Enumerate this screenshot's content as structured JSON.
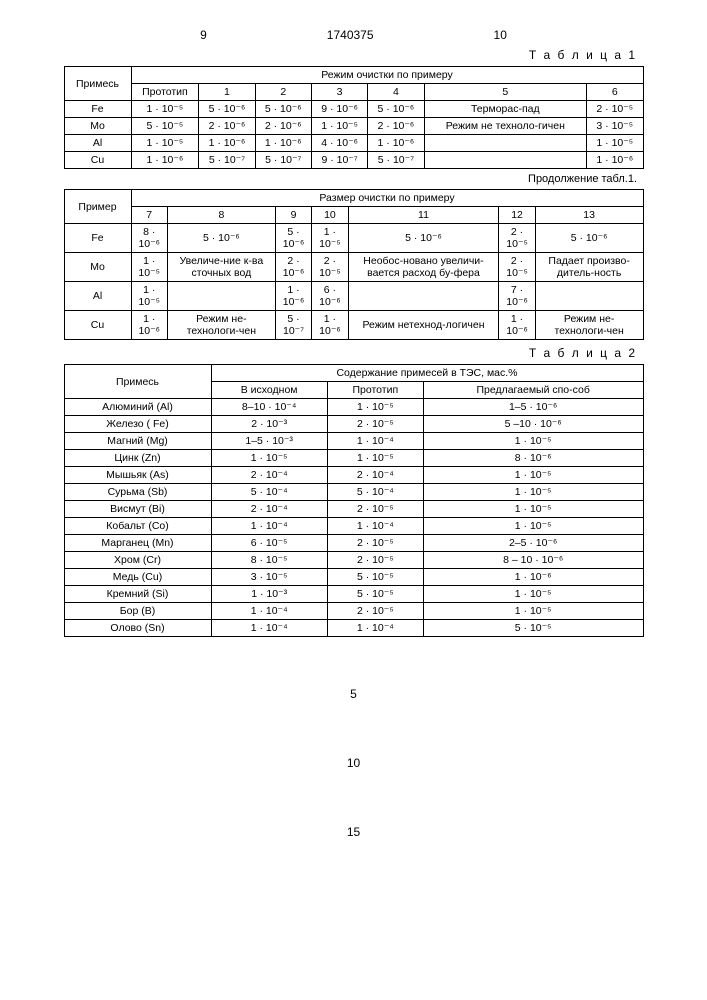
{
  "header": {
    "left_col": "9",
    "doc_number": "1740375",
    "right_col": "10"
  },
  "table1_label": "Т а б л и ц а 1",
  "continuation_label": "Продолжение табл.1.",
  "table2_label": "Т а б л и ц а 2",
  "t1a": {
    "row_header": "Примесь",
    "group_header": "Режим очистки по примеру",
    "cols": [
      "Прототип",
      "1",
      "2",
      "3",
      "4",
      "5",
      "6"
    ],
    "rows": [
      {
        "label": "Fe",
        "cells": [
          "1 · 10⁻⁵",
          "5 · 10⁻⁶",
          "5 · 10⁻⁶",
          "9 · 10⁻⁶",
          "5 · 10⁻⁶",
          "Терморас-пад",
          "2 · 10⁻⁵"
        ]
      },
      {
        "label": "Mo",
        "cells": [
          "5 · 10⁻⁵",
          "2 · 10⁻⁶",
          "2 · 10⁻⁶",
          "1 · 10⁻⁵",
          "2 · 10⁻⁶",
          "Режим не техноло-гичен",
          "3 · 10⁻⁵"
        ]
      },
      {
        "label": "Al",
        "cells": [
          "1 · 10⁻⁵",
          "1 · 10⁻⁶",
          "1 · 10⁻⁶",
          "4 · 10⁻⁶",
          "1 · 10⁻⁶",
          "",
          "1 · 10⁻⁵"
        ]
      },
      {
        "label": "Cu",
        "cells": [
          "1 · 10⁻⁶",
          "5 · 10⁻⁷",
          "5 · 10⁻⁷",
          "9 · 10⁻⁷",
          "5 · 10⁻⁷",
          "",
          "1 · 10⁻⁶"
        ]
      }
    ]
  },
  "t1b": {
    "row_header": "Пример",
    "group_header": "Размер очистки по примеру",
    "cols": [
      "7",
      "8",
      "9",
      "10",
      "11",
      "12",
      "13"
    ],
    "rows": [
      {
        "label": "Fe",
        "cells": [
          "8 · 10⁻⁶",
          "5 · 10⁻⁶",
          "5 · 10⁻⁶",
          "1 · 10⁻⁵",
          "5 · 10⁻⁶",
          "2 · 10⁻⁵",
          "5 · 10⁻⁶"
        ]
      },
      {
        "label": "Mo",
        "cells": [
          "1 · 10⁻⁵",
          "Увеличе-ние к-ва сточных вод",
          "2 · 10⁻⁶",
          "2 · 10⁻⁵",
          "Необос-новано увеличи-вается расход бу-фера",
          "2 · 10⁻⁵",
          "Падает произво-дитель-ность"
        ]
      },
      {
        "label": "Al",
        "cells": [
          "1 · 10⁻⁵",
          "",
          "1 · 10⁻⁶",
          "6 · 10⁻⁶",
          "",
          "7 · 10⁻⁶",
          ""
        ]
      },
      {
        "label": "Cu",
        "cells": [
          "1 · 10⁻⁶",
          "Режим не-технологи-чен",
          "5 · 10⁻⁷",
          "1 · 10⁻⁶",
          "Режим нетехнод-логичен",
          "1 · 10⁻⁶",
          "Режим не-технологи-чен"
        ]
      }
    ]
  },
  "t2": {
    "row_header": "Примесь",
    "group_header": "Содержание примесей в ТЭС, мас.%",
    "cols": [
      "В исходном",
      "Прототип",
      "Предлагаемый спо-соб"
    ],
    "rows": [
      {
        "label": "Алюминий (Al)",
        "cells": [
          "8–10 · 10⁻⁴",
          "1 · 10⁻⁵",
          "1–5 · 10⁻⁶"
        ]
      },
      {
        "label": "Железо ( Fe)",
        "cells": [
          "2 · 10⁻³",
          "2 · 10⁻⁵",
          "5 –10 · 10⁻⁶"
        ]
      },
      {
        "label": "Магний (Mg)",
        "cells": [
          "1–5 · 10⁻³",
          "1 · 10⁻⁴",
          "1 · 10⁻⁵"
        ]
      },
      {
        "label": "Цинк (Zn)",
        "cells": [
          "1 · 10⁻⁵",
          "1 · 10⁻⁵",
          "8 · 10⁻⁶"
        ]
      },
      {
        "label": "Мышьяк (As)",
        "cells": [
          "2 · 10⁻⁴",
          "2 · 10⁻⁴",
          "1 · 10⁻⁵"
        ]
      },
      {
        "label": "Сурьма (Sb)",
        "cells": [
          "5 · 10⁻⁴",
          "5 · 10⁻⁴",
          "1 · 10⁻⁵"
        ]
      },
      {
        "label": "Висмут (Bi)",
        "cells": [
          "2 · 10⁻⁴",
          "2 · 10⁻⁵",
          "1 · 10⁻⁵"
        ]
      },
      {
        "label": "Кобальт (Co)",
        "cells": [
          "1 · 10⁻⁴",
          "1 · 10⁻⁴",
          "1 · 10⁻⁵"
        ]
      },
      {
        "label": "Марганец (Mn)",
        "cells": [
          "6 · 10⁻⁵",
          "2 · 10⁻⁵",
          "2–5 · 10⁻⁶"
        ]
      },
      {
        "label": "Хром (Cr)",
        "cells": [
          "8 · 10⁻⁵",
          "2 · 10⁻⁵",
          "8 – 10 · 10⁻⁶"
        ]
      },
      {
        "label": "Медь (Cu)",
        "cells": [
          "3 · 10⁻⁵",
          "5 · 10⁻⁵",
          "1 · 10⁻⁶"
        ]
      },
      {
        "label": "Кремний (Si)",
        "cells": [
          "1 · 10⁻³",
          "5 · 10⁻⁵",
          "1 · 10⁻⁵"
        ]
      },
      {
        "label": "Бор (B)",
        "cells": [
          "1 · 10⁻⁴",
          "2 · 10⁻⁵",
          "1 · 10⁻⁵"
        ]
      },
      {
        "label": "Олово (Sn)",
        "cells": [
          "1 · 10⁻⁴",
          "1 · 10⁻⁴",
          "5 · 10⁻⁵"
        ]
      }
    ]
  },
  "footer": {
    "n1": "5",
    "n2": "10",
    "n3": "15"
  }
}
